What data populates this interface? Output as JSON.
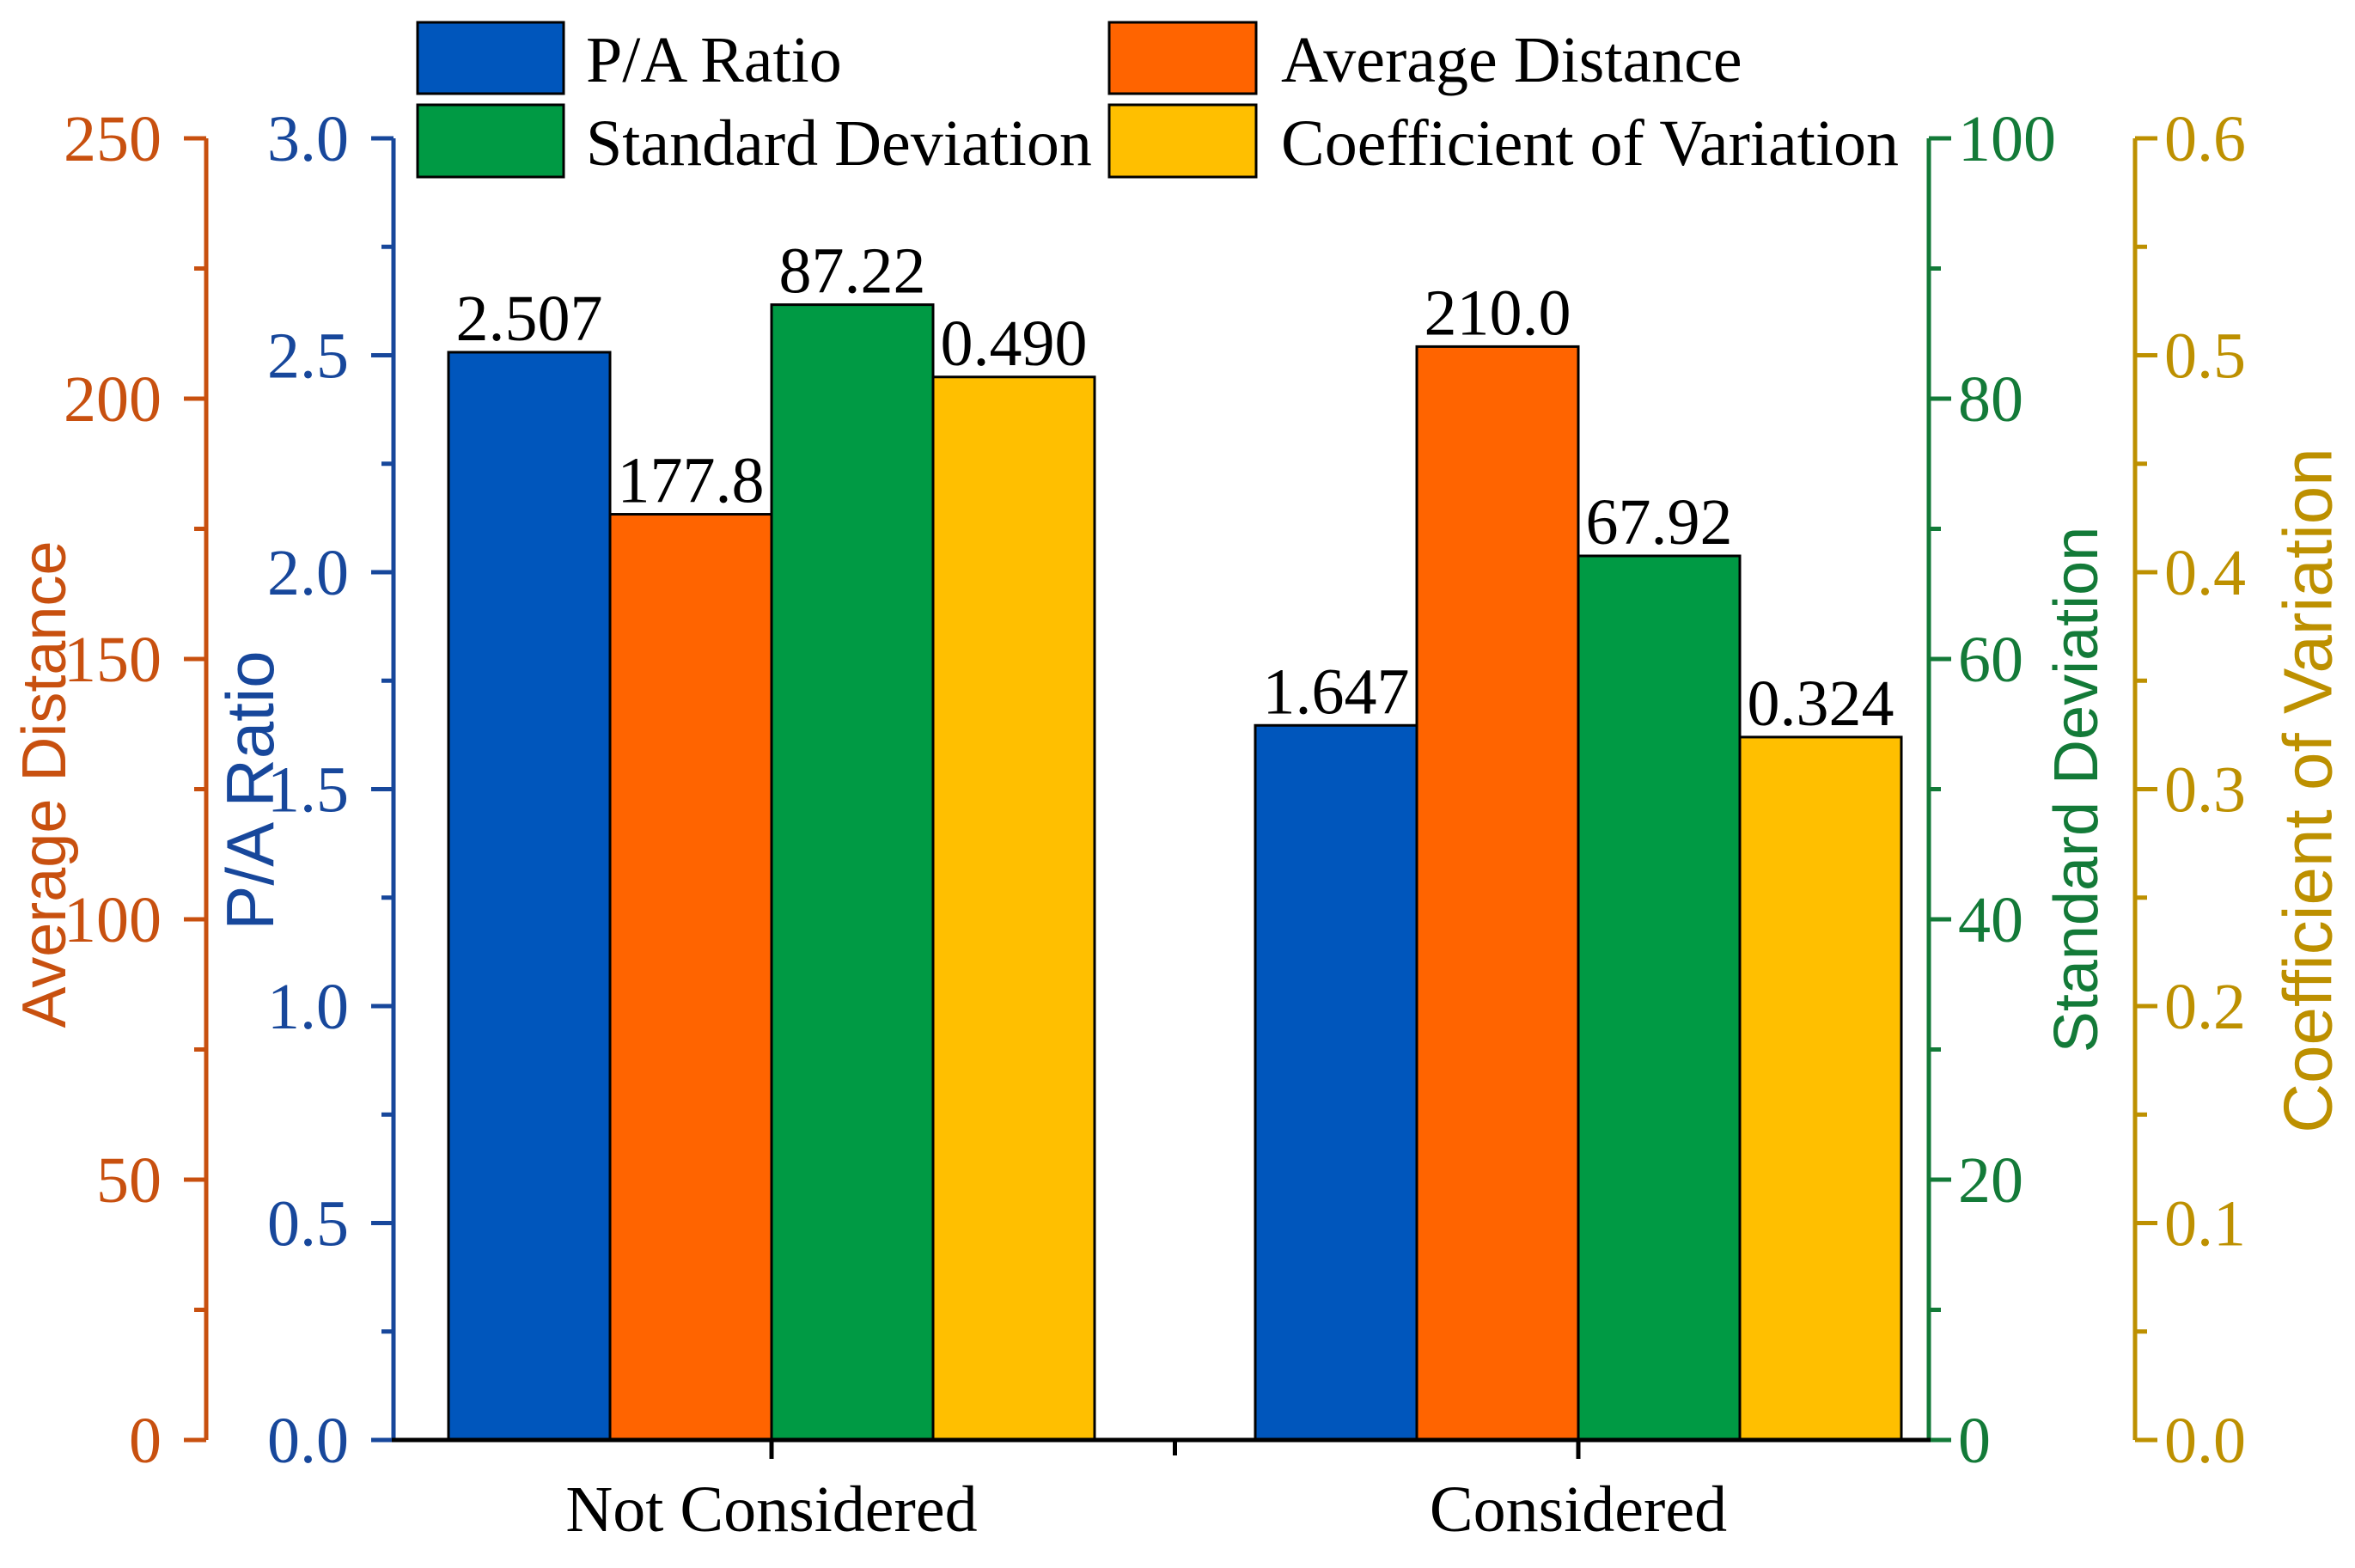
{
  "chart_data": {
    "type": "bar",
    "categories": [
      "Not Considered",
      "Considered"
    ],
    "series": [
      {
        "name": "P/A Ratio",
        "values": [
          2.507,
          1.647
        ],
        "labels": [
          "2.507",
          "1.647"
        ],
        "color": "#0056BC",
        "y_axis": {
          "title": "P/A Ratio",
          "position": "left",
          "ylim": [
            0,
            3
          ],
          "ticks": [
            "0.0",
            "0.5",
            "1.0",
            "1.5",
            "2.0",
            "2.5",
            "3.0"
          ],
          "color": "#17479B"
        }
      },
      {
        "name": "Average Distance",
        "values": [
          177.8,
          210.0
        ],
        "labels": [
          "177.8",
          "210.0"
        ],
        "color": "#FF6400",
        "y_axis": {
          "title": "Average Distance",
          "position": "left-outer",
          "ylim": [
            0,
            250
          ],
          "ticks": [
            "0",
            "50",
            "100",
            "150",
            "200",
            "250"
          ],
          "color": "#C8500F"
        }
      },
      {
        "name": "Standard Deviation",
        "values": [
          87.22,
          67.92
        ],
        "labels": [
          "87.22",
          "67.92"
        ],
        "color": "#009A44",
        "y_axis": {
          "title": "Standard Deviation",
          "position": "right",
          "ylim": [
            0,
            100
          ],
          "ticks": [
            "0",
            "20",
            "40",
            "60",
            "80",
            "100"
          ],
          "color": "#137A38"
        }
      },
      {
        "name": "Coefficient of Variation",
        "values": [
          0.49,
          0.324
        ],
        "labels": [
          "0.490",
          "0.324"
        ],
        "color": "#FFBF00",
        "y_axis": {
          "title": "Coefficient of Variation",
          "position": "right-outer",
          "ylim": [
            0,
            0.6
          ],
          "ticks": [
            "0.0",
            "0.1",
            "0.2",
            "0.3",
            "0.4",
            "0.5",
            "0.6"
          ],
          "color": "#BD9000"
        }
      }
    ],
    "legend": "top",
    "grid": false
  }
}
